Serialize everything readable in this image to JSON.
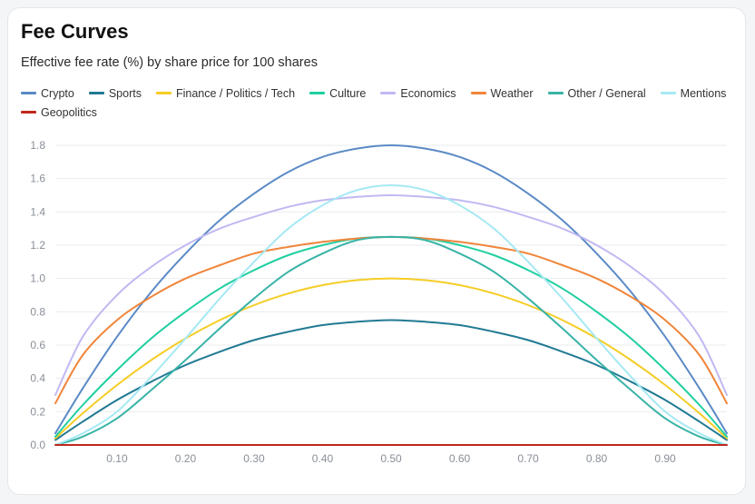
{
  "chart_data": {
    "type": "line",
    "title": "Fee Curves",
    "subtitle": "Effective fee rate (%) by share price for 100 shares",
    "xlabel": "",
    "ylabel": "",
    "xlim": [
      0.01,
      0.99
    ],
    "ylim": [
      0,
      1.8
    ],
    "xticks": [
      "0.10",
      "0.20",
      "0.30",
      "0.40",
      "0.50",
      "0.60",
      "0.70",
      "0.80",
      "0.90"
    ],
    "yticks": [
      "0.0",
      "0.2",
      "0.4",
      "0.6",
      "0.8",
      "1.0",
      "1.2",
      "1.4",
      "1.6",
      "1.8"
    ],
    "grid": true,
    "legend_position": "top",
    "x": [
      0.01,
      0.05,
      0.1,
      0.15,
      0.2,
      0.25,
      0.3,
      0.35,
      0.4,
      0.45,
      0.5,
      0.55,
      0.6,
      0.65,
      0.7,
      0.75,
      0.8,
      0.85,
      0.9,
      0.95,
      0.99
    ],
    "series": [
      {
        "name": "Crypto",
        "color": "#5b8ac6",
        "values": [
          0.07,
          0.34,
          0.65,
          0.92,
          1.15,
          1.35,
          1.51,
          1.64,
          1.73,
          1.78,
          1.8,
          1.78,
          1.73,
          1.64,
          1.51,
          1.35,
          1.15,
          0.92,
          0.65,
          0.34,
          0.07
        ]
      },
      {
        "name": "Sports",
        "color": "#217a93",
        "values": [
          0.03,
          0.14,
          0.27,
          0.38,
          0.48,
          0.56,
          0.63,
          0.68,
          0.72,
          0.74,
          0.75,
          0.74,
          0.72,
          0.68,
          0.63,
          0.56,
          0.48,
          0.38,
          0.27,
          0.14,
          0.03
        ]
      },
      {
        "name": "Finance / Politics / Tech",
        "color": "#f5cd26",
        "values": [
          0.04,
          0.19,
          0.36,
          0.51,
          0.64,
          0.75,
          0.84,
          0.91,
          0.96,
          0.99,
          1.0,
          0.99,
          0.96,
          0.91,
          0.84,
          0.75,
          0.64,
          0.51,
          0.36,
          0.19,
          0.04
        ]
      },
      {
        "name": "Culture",
        "color": "#1fcfa0",
        "values": [
          0.05,
          0.24,
          0.45,
          0.64,
          0.8,
          0.94,
          1.05,
          1.14,
          1.2,
          1.24,
          1.25,
          1.24,
          1.2,
          1.14,
          1.05,
          0.94,
          0.8,
          0.64,
          0.45,
          0.24,
          0.05
        ]
      },
      {
        "name": "Economics",
        "color": "#c0b9f2",
        "values": [
          0.3,
          0.65,
          0.9,
          1.07,
          1.2,
          1.3,
          1.37,
          1.43,
          1.47,
          1.49,
          1.5,
          1.49,
          1.47,
          1.43,
          1.37,
          1.3,
          1.2,
          1.07,
          0.9,
          0.65,
          0.3
        ]
      },
      {
        "name": "Weather",
        "color": "#f0853a",
        "values": [
          0.25,
          0.54,
          0.75,
          0.89,
          1.0,
          1.08,
          1.15,
          1.19,
          1.22,
          1.24,
          1.25,
          1.24,
          1.22,
          1.19,
          1.15,
          1.08,
          1.0,
          0.89,
          0.75,
          0.54,
          0.25
        ]
      },
      {
        "name": "Other / General",
        "color": "#38b3a6",
        "values": [
          0.0,
          0.05,
          0.16,
          0.33,
          0.51,
          0.7,
          0.88,
          1.04,
          1.15,
          1.23,
          1.25,
          1.23,
          1.15,
          1.04,
          0.88,
          0.7,
          0.51,
          0.33,
          0.16,
          0.05,
          0.0
        ]
      },
      {
        "name": "Mentions",
        "color": "#a6e9f3",
        "values": [
          0.0,
          0.07,
          0.2,
          0.41,
          0.64,
          0.88,
          1.1,
          1.3,
          1.44,
          1.53,
          1.56,
          1.53,
          1.44,
          1.3,
          1.1,
          0.88,
          0.64,
          0.41,
          0.2,
          0.07,
          0.0
        ]
      },
      {
        "name": "Geopolitics",
        "color": "#c0271c",
        "values": [
          0,
          0,
          0,
          0,
          0,
          0,
          0,
          0,
          0,
          0,
          0,
          0,
          0,
          0,
          0,
          0,
          0,
          0,
          0,
          0,
          0
        ]
      }
    ]
  }
}
